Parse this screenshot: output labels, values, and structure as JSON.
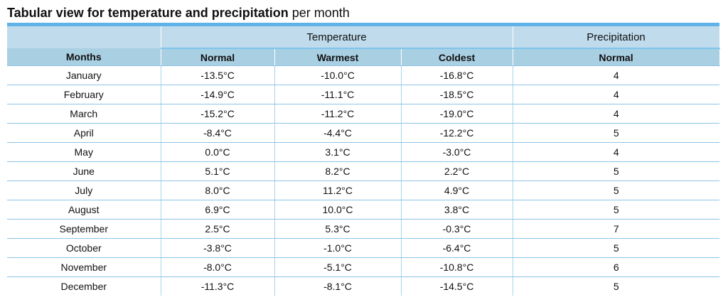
{
  "title": {
    "bold": "Tabular view for temperature and precipitation",
    "rest": " per month"
  },
  "table": {
    "group_headers": {
      "temperature": "Temperature",
      "precipitation": "Precipitation"
    },
    "column_headers": [
      "Months",
      "Normal",
      "Warmest",
      "Coldest",
      "Normal"
    ],
    "rows": [
      [
        "January",
        "-13.5°C",
        "-10.0°C",
        "-16.8°C",
        "4"
      ],
      [
        "February",
        "-14.9°C",
        "-11.1°C",
        "-18.5°C",
        "4"
      ],
      [
        "March",
        "-15.2°C",
        "-11.2°C",
        "-19.0°C",
        "4"
      ],
      [
        "April",
        "-8.4°C",
        "-4.4°C",
        "-12.2°C",
        "5"
      ],
      [
        "May",
        "0.0°C",
        "3.1°C",
        "-3.0°C",
        "4"
      ],
      [
        "June",
        "5.1°C",
        "8.2°C",
        "2.2°C",
        "5"
      ],
      [
        "July",
        "8.0°C",
        "11.2°C",
        "4.9°C",
        "5"
      ],
      [
        "August",
        "6.9°C",
        "10.0°C",
        "3.8°C",
        "5"
      ],
      [
        "September",
        "2.5°C",
        "5.3°C",
        "-0.3°C",
        "7"
      ],
      [
        "October",
        "-3.8°C",
        "-1.0°C",
        "-6.4°C",
        "5"
      ],
      [
        "November",
        "-8.0°C",
        "-5.1°C",
        "-10.8°C",
        "6"
      ],
      [
        "December",
        "-11.3°C",
        "-8.1°C",
        "-14.5°C",
        "5"
      ]
    ]
  },
  "colors": {
    "accent_bar": "#5fb2e8",
    "group_header_bg": "#bfdbec",
    "column_header_bg": "#a9cfe3",
    "row_divider": "#8cc4e6"
  }
}
